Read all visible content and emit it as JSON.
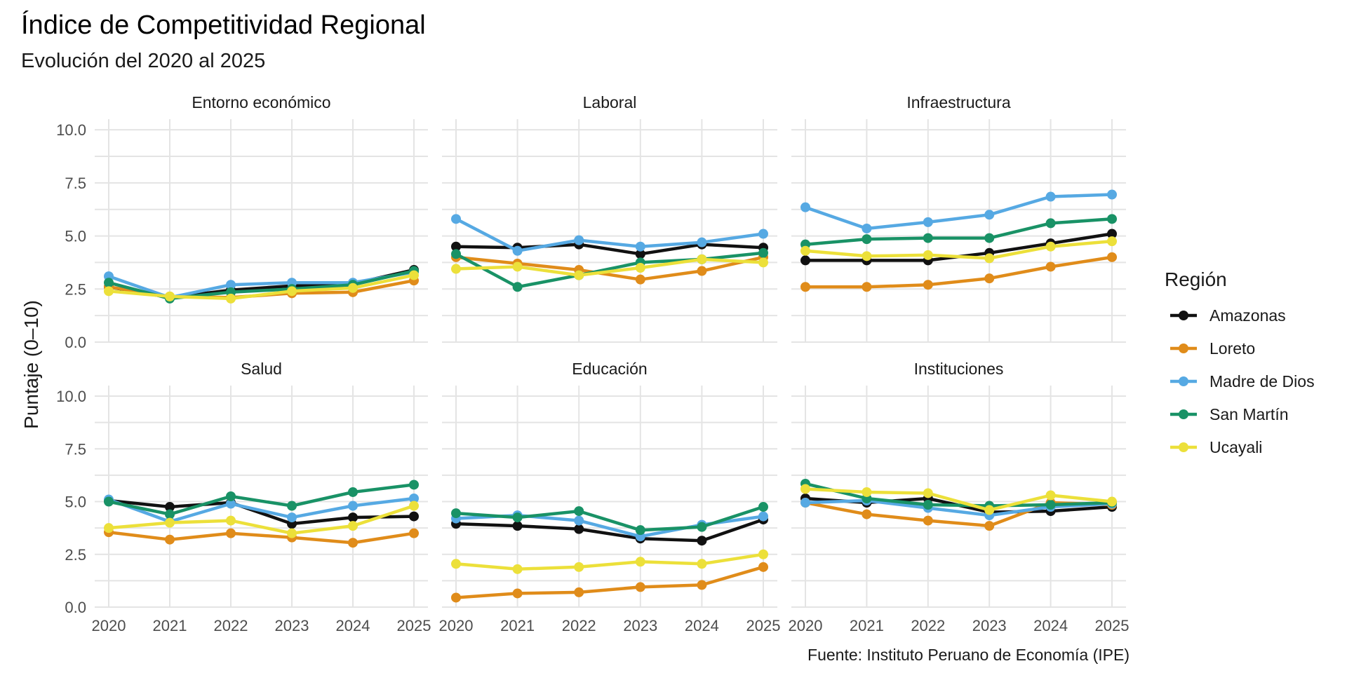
{
  "chart_data": {
    "type": "line",
    "title": "Índice de Competitividad Regional",
    "subtitle": "Evolución del 2020 al 2025",
    "ylabel": "Puntaje (0–10)",
    "caption": "Fuente: Instituto Peruano de Economía (IPE)",
    "legend_title": "Región",
    "legend_position": "right",
    "grid": true,
    "x": [
      "2020",
      "2021",
      "2022",
      "2023",
      "2024",
      "2025"
    ],
    "ylim": [
      0,
      10.5
    ],
    "yticks": [
      "0.0",
      "2.5",
      "5.0",
      "7.5",
      "10.0"
    ],
    "series_names": [
      "Amazonas",
      "Loreto",
      "Madre de Dios",
      "San Martín",
      "Ucayali"
    ],
    "colors": {
      "Amazonas": "#111111",
      "Loreto": "#e08c1a",
      "Madre de Dios": "#56a9e3",
      "San Martín": "#199266",
      "Ucayali": "#ece03a"
    },
    "panels": [
      {
        "title": "Entorno económico",
        "series": [
          {
            "name": "Amazonas",
            "values": [
              2.6,
              2.1,
              2.45,
              2.65,
              2.75,
              3.4
            ]
          },
          {
            "name": "Loreto",
            "values": [
              2.6,
              2.15,
              2.1,
              2.3,
              2.35,
              2.9
            ]
          },
          {
            "name": "Madre de Dios",
            "values": [
              3.1,
              2.1,
              2.7,
              2.8,
              2.8,
              3.3
            ]
          },
          {
            "name": "San Martín",
            "values": [
              2.8,
              2.05,
              2.35,
              2.5,
              2.7,
              3.35
            ]
          },
          {
            "name": "Ucayali",
            "values": [
              2.4,
              2.15,
              2.05,
              2.4,
              2.55,
              3.15
            ]
          }
        ]
      },
      {
        "title": "Laboral",
        "series": [
          {
            "name": "Amazonas",
            "values": [
              4.5,
              4.45,
              4.6,
              4.15,
              4.6,
              4.45
            ]
          },
          {
            "name": "Loreto",
            "values": [
              4.0,
              3.7,
              3.4,
              2.95,
              3.35,
              4.0
            ]
          },
          {
            "name": "Madre de Dios",
            "values": [
              5.8,
              4.3,
              4.8,
              4.5,
              4.7,
              5.1
            ]
          },
          {
            "name": "San Martín",
            "values": [
              4.15,
              2.6,
              3.15,
              3.75,
              3.9,
              4.2
            ]
          },
          {
            "name": "Ucayali",
            "values": [
              3.45,
              3.55,
              3.15,
              3.5,
              3.9,
              3.75
            ]
          }
        ]
      },
      {
        "title": "Infraestructura",
        "series": [
          {
            "name": "Amazonas",
            "values": [
              3.85,
              3.85,
              3.85,
              4.2,
              4.65,
              5.1
            ]
          },
          {
            "name": "Loreto",
            "values": [
              2.6,
              2.6,
              2.7,
              3.0,
              3.55,
              4.0
            ]
          },
          {
            "name": "Madre de Dios",
            "values": [
              6.35,
              5.35,
              5.65,
              6.0,
              6.85,
              6.95
            ]
          },
          {
            "name": "San Martín",
            "values": [
              4.6,
              4.85,
              4.9,
              4.9,
              5.6,
              5.8
            ]
          },
          {
            "name": "Ucayali",
            "values": [
              4.3,
              4.05,
              4.1,
              3.95,
              4.5,
              4.75
            ]
          }
        ]
      },
      {
        "title": "Salud",
        "series": [
          {
            "name": "Amazonas",
            "values": [
              5.05,
              4.75,
              4.95,
              3.95,
              4.25,
              4.3
            ]
          },
          {
            "name": "Loreto",
            "values": [
              3.55,
              3.2,
              3.5,
              3.3,
              3.05,
              3.5
            ]
          },
          {
            "name": "Madre de Dios",
            "values": [
              5.1,
              4.05,
              4.9,
              4.25,
              4.8,
              5.15
            ]
          },
          {
            "name": "San Martín",
            "values": [
              5.0,
              4.4,
              5.25,
              4.8,
              5.45,
              5.8
            ]
          },
          {
            "name": "Ucayali",
            "values": [
              3.75,
              4.0,
              4.1,
              3.5,
              3.85,
              4.8
            ]
          }
        ]
      },
      {
        "title": "Educación",
        "series": [
          {
            "name": "Amazonas",
            "values": [
              3.95,
              3.85,
              3.7,
              3.25,
              3.15,
              4.15
            ]
          },
          {
            "name": "Loreto",
            "values": [
              0.45,
              0.65,
              0.7,
              0.95,
              1.05,
              1.9
            ]
          },
          {
            "name": "Madre de Dios",
            "values": [
              4.2,
              4.35,
              4.1,
              3.35,
              3.9,
              4.3
            ]
          },
          {
            "name": "San Martín",
            "values": [
              4.45,
              4.25,
              4.55,
              3.65,
              3.8,
              4.75
            ]
          },
          {
            "name": "Ucayali",
            "values": [
              2.05,
              1.8,
              1.9,
              2.15,
              2.05,
              2.5
            ]
          }
        ]
      },
      {
        "title": "Instituciones",
        "series": [
          {
            "name": "Amazonas",
            "values": [
              5.15,
              4.95,
              5.15,
              4.5,
              4.55,
              4.75
            ]
          },
          {
            "name": "Loreto",
            "values": [
              4.95,
              4.4,
              4.1,
              3.85,
              4.95,
              4.85
            ]
          },
          {
            "name": "Madre de Dios",
            "values": [
              4.95,
              5.05,
              4.7,
              4.35,
              4.75,
              4.9
            ]
          },
          {
            "name": "San Martín",
            "values": [
              5.85,
              5.15,
              4.85,
              4.8,
              4.85,
              4.95
            ]
          },
          {
            "name": "Ucayali",
            "values": [
              5.6,
              5.45,
              5.4,
              4.6,
              5.3,
              5.0
            ]
          }
        ]
      }
    ]
  }
}
